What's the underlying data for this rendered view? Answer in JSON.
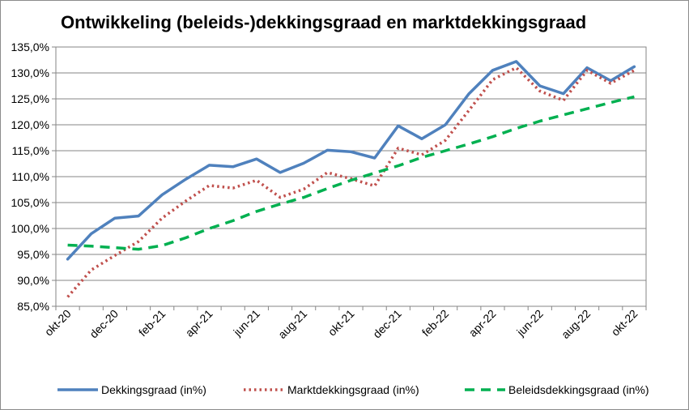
{
  "chart_data": {
    "type": "line",
    "title": "Ontwikkeling (beleids-)dekkingsgraad en marktdekkingsgraad",
    "xlabel": "",
    "ylabel": "",
    "categories": [
      "okt-20",
      "nov-20",
      "dec-20",
      "jan-21",
      "feb-21",
      "mrt-21",
      "apr-21",
      "mei-21",
      "jun-21",
      "jul-21",
      "aug-21",
      "sep-21",
      "okt-21",
      "nov-21",
      "dec-21",
      "jan-22",
      "feb-22",
      "mrt-22",
      "apr-22",
      "mei-22",
      "jun-22",
      "jul-22",
      "aug-22",
      "sep-22",
      "okt-22"
    ],
    "x_tick_labels": [
      "okt-20",
      "dec-20",
      "feb-21",
      "apr-21",
      "jun-21",
      "aug-21",
      "okt-21",
      "dec-21",
      "feb-22",
      "apr-22",
      "jun-22",
      "aug-22",
      "okt-22"
    ],
    "y_tick_labels": [
      "85,0%",
      "90,0%",
      "95,0%",
      "100,0%",
      "105,0%",
      "110,0%",
      "115,0%",
      "120,0%",
      "125,0%",
      "130,0%",
      "135,0%"
    ],
    "ylim": [
      85,
      135
    ],
    "y_step": 5,
    "grid": true,
    "legend_position": "bottom",
    "series": [
      {
        "name": "Dekkingsgraad (in%)",
        "color": "#4f81bd",
        "style": "solid",
        "values": [
          94.1,
          99.0,
          102.0,
          102.4,
          106.5,
          109.5,
          112.2,
          111.9,
          113.4,
          110.8,
          112.6,
          115.1,
          114.8,
          113.6,
          119.8,
          117.3,
          120.0,
          126.0,
          130.5,
          132.2,
          127.5,
          126.0,
          131.0,
          128.5,
          131.2
        ]
      },
      {
        "name": "Marktdekkingsgraad (in%)",
        "color": "#c0504d",
        "style": "dotted",
        "values": [
          86.8,
          92.0,
          94.8,
          97.5,
          102.0,
          105.3,
          108.3,
          107.8,
          109.3,
          106.0,
          107.6,
          110.8,
          109.6,
          108.2,
          115.5,
          114.2,
          117.0,
          122.8,
          128.7,
          131.0,
          126.5,
          124.7,
          130.5,
          128.0,
          130.5
        ]
      },
      {
        "name": "Beleidsdekkingsgraad (in%)",
        "color": "#00b050",
        "style": "dashed",
        "values": [
          96.8,
          96.6,
          96.3,
          96.0,
          96.7,
          98.2,
          100.0,
          101.5,
          103.3,
          104.7,
          106.0,
          107.7,
          109.3,
          110.7,
          112.1,
          113.7,
          115.0,
          116.3,
          117.7,
          119.3,
          120.7,
          121.9,
          123.1,
          124.3,
          125.4
        ]
      }
    ]
  }
}
